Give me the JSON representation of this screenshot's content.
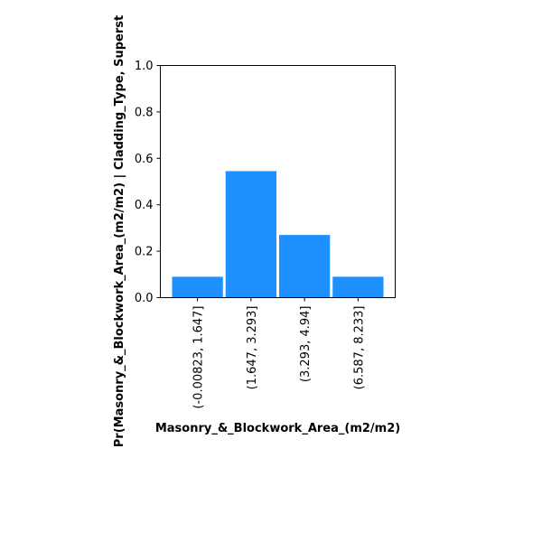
{
  "chart_data": {
    "type": "bar",
    "title": "",
    "xlabel": "Masonry_&_Blockwork_Area_(m2/m2)",
    "ylabel": "Pr(Masonry_&_Blockwork_Area_(m2/m2) | Cladding_Type, Superst",
    "categories": [
      "(-0.00823, 1.647]",
      "(1.647, 3.293]",
      "(3.293, 4.94]",
      "(6.587, 8.233]"
    ],
    "values": [
      0.09,
      0.545,
      0.27,
      0.09
    ],
    "ylim": [
      0,
      1.0
    ],
    "yticks": [
      "0.0",
      "0.2",
      "0.4",
      "0.6",
      "0.8",
      "1.0"
    ],
    "bar_color": "#1e90ff",
    "grid": false,
    "legend": "none"
  }
}
